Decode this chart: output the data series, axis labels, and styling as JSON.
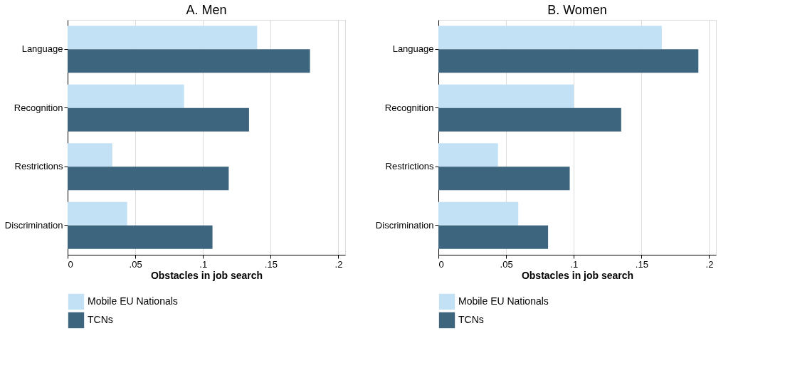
{
  "chart_data": [
    {
      "type": "bar",
      "orientation": "horizontal",
      "title": "A. Men",
      "xlabel": "Obstacles in job search",
      "categories": [
        "Language",
        "Recognition",
        "Restrictions",
        "Discrimination"
      ],
      "series": [
        {
          "name": "Mobile EU Nationals",
          "color": "#c3e1f4",
          "values": [
            0.14,
            0.086,
            0.033,
            0.044
          ]
        },
        {
          "name": "TCNs",
          "color": "#3e657e",
          "values": [
            0.179,
            0.134,
            0.119,
            0.107
          ]
        }
      ],
      "xlim": [
        0,
        0.205
      ],
      "xticks": [
        0,
        {
          "value": 0.05,
          "label": ".05"
        },
        {
          "value": 0.1,
          "label": ".1"
        },
        {
          "value": 0.15,
          "label": ".15"
        },
        {
          "value": 0.2,
          "label": ".2"
        }
      ],
      "grid": "x",
      "legend": "bottom"
    },
    {
      "type": "bar",
      "orientation": "horizontal",
      "title": "B. Women",
      "xlabel": "Obstacles in job search",
      "categories": [
        "Language",
        "Recognition",
        "Restrictions",
        "Discrimination"
      ],
      "series": [
        {
          "name": "Mobile EU Nationals",
          "color": "#c3e1f4",
          "values": [
            0.165,
            0.1,
            0.044,
            0.059
          ]
        },
        {
          "name": "TCNs",
          "color": "#3e657e",
          "values": [
            0.192,
            0.135,
            0.097,
            0.081
          ]
        }
      ],
      "xlim": [
        0,
        0.205
      ],
      "xticks": [
        0,
        {
          "value": 0.05,
          "label": ".05"
        },
        {
          "value": 0.1,
          "label": ".1"
        },
        {
          "value": 0.15,
          "label": ".15"
        },
        {
          "value": 0.2,
          "label": ".2"
        }
      ],
      "grid": "x",
      "legend": "bottom"
    }
  ]
}
